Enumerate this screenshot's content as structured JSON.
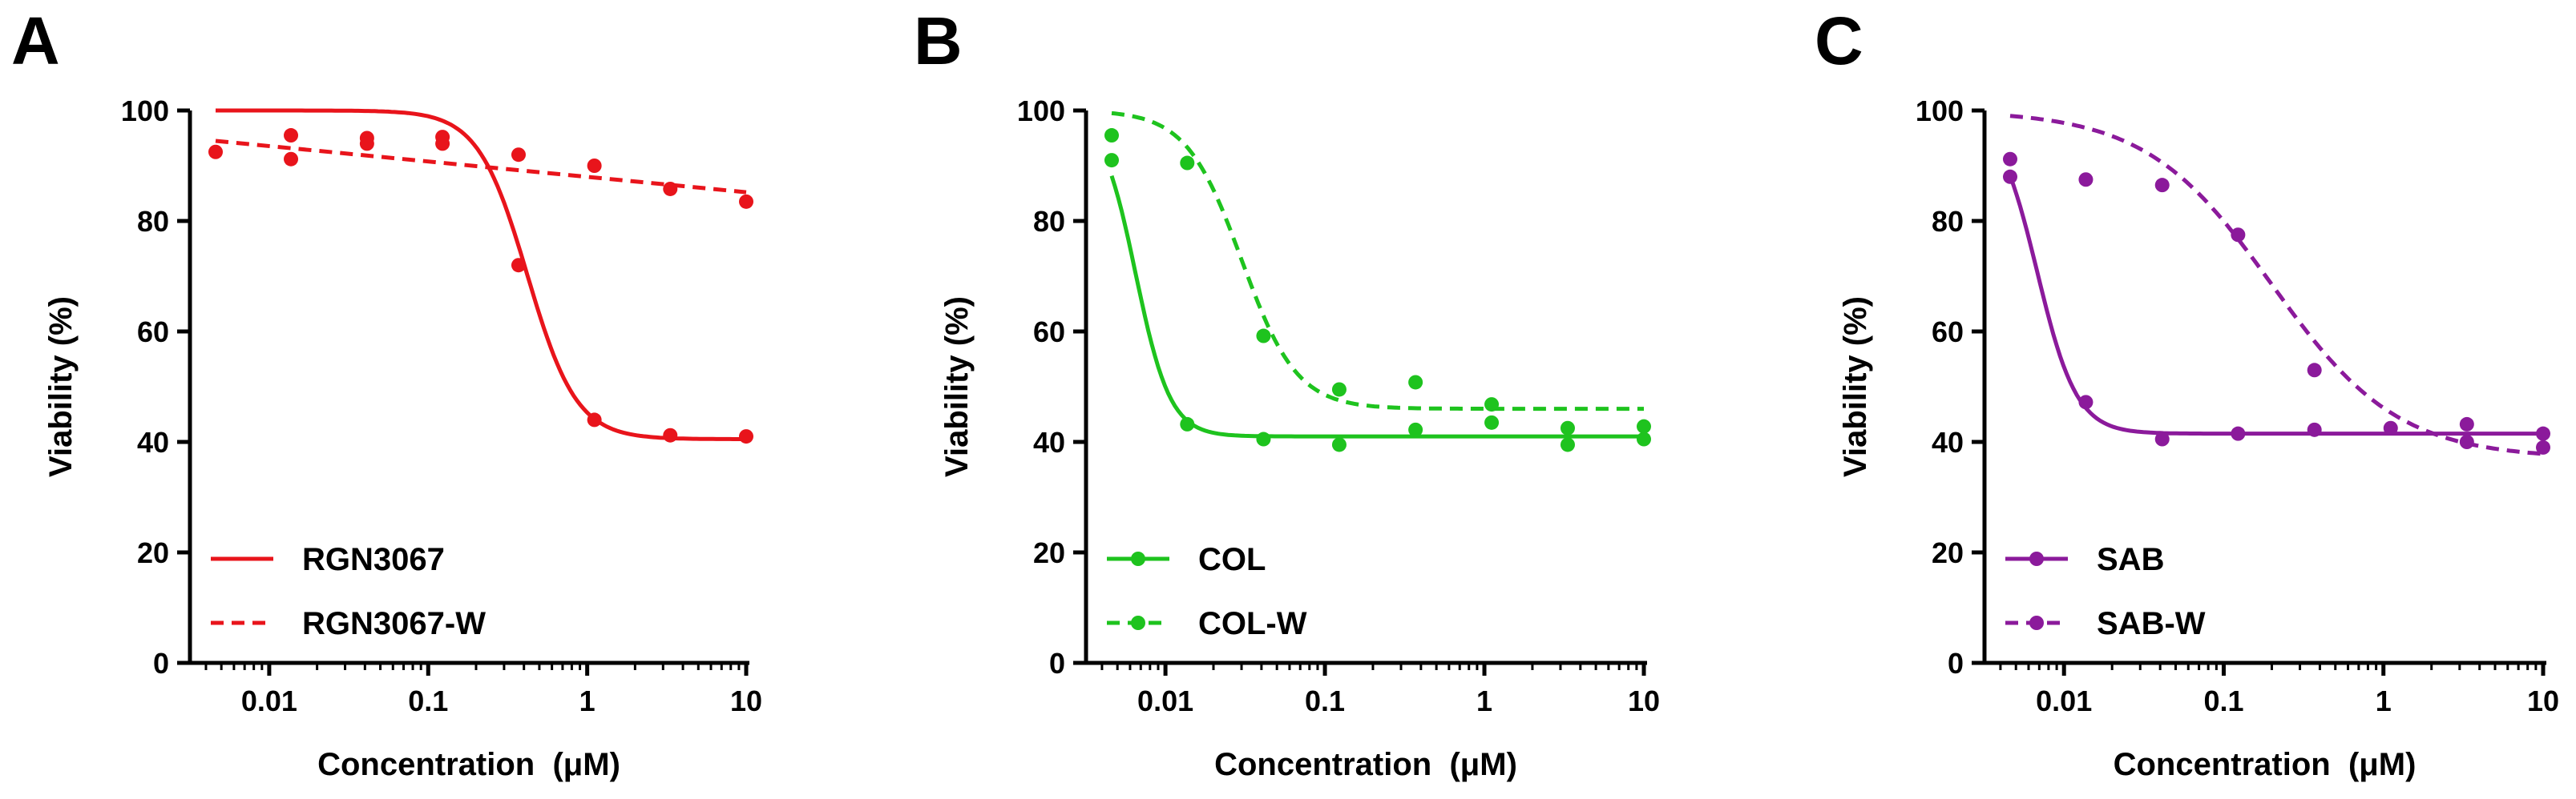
{
  "chart_data": [
    {
      "panel": "A",
      "type": "scatter",
      "xscale": "log",
      "xlabel": "Concentration  (μM)",
      "ylabel": "Viability (%)",
      "xlim": [
        0.0025,
        12
      ],
      "ylim": [
        0,
        100
      ],
      "xticks": [
        0.01,
        0.1,
        1,
        10
      ],
      "xtick_labels": [
        "0.01",
        "0.1",
        "1",
        "10"
      ],
      "yticks": [
        0,
        20,
        40,
        60,
        80,
        100
      ],
      "ytick_labels": [
        "0",
        "20",
        "40",
        "60",
        "80",
        "100"
      ],
      "legend_position": "bottom-left",
      "series": [
        {
          "name": "RGN3067",
          "color": "#e8141b",
          "dashed": false,
          "legend_marker": false,
          "points": [
            [
              0.0137,
              95.5
            ],
            [
              0.0412,
              95.0
            ],
            [
              0.0412,
              94.0
            ],
            [
              0.123,
              95.2
            ],
            [
              0.123,
              94.0
            ],
            [
              0.37,
              72.0
            ],
            [
              1.11,
              44.0
            ],
            [
              3.33,
              41.2
            ],
            [
              10,
              41.0
            ]
          ],
          "curve": {
            "model": "sigmoid",
            "top": 100,
            "bottom": 40.5,
            "ec50": 0.42,
            "hill": 2.8
          }
        },
        {
          "name": "RGN3067-W",
          "color": "#e8141b",
          "dashed": true,
          "legend_marker": false,
          "points": [
            [
              0.0046,
              92.5
            ],
            [
              0.0137,
              91.2
            ],
            [
              0.37,
              92.0
            ],
            [
              1.11,
              90.0
            ],
            [
              3.33,
              85.8
            ],
            [
              10,
              83.5
            ]
          ],
          "curve": {
            "model": "linear-log",
            "points": [
              [
                0.0046,
                94.5
              ],
              [
                10,
                85.2
              ]
            ]
          }
        }
      ]
    },
    {
      "panel": "B",
      "type": "scatter",
      "xscale": "log",
      "xlabel": "Concentration  (μM)",
      "ylabel": "Viability (%)",
      "xlim": [
        0.0025,
        12
      ],
      "ylim": [
        0,
        100
      ],
      "xticks": [
        0.01,
        0.1,
        1,
        10
      ],
      "xtick_labels": [
        "0.01",
        "0.1",
        "1",
        "10"
      ],
      "yticks": [
        0,
        20,
        40,
        60,
        80,
        100
      ],
      "ytick_labels": [
        "0",
        "20",
        "40",
        "60",
        "80",
        "100"
      ],
      "legend_position": "bottom-left",
      "series": [
        {
          "name": "COL",
          "color": "#1ec31e",
          "dashed": false,
          "legend_marker": true,
          "points": [
            [
              0.0046,
              91.0
            ],
            [
              0.0137,
              43.2
            ],
            [
              0.0412,
              40.5
            ],
            [
              0.123,
              39.5
            ],
            [
              0.37,
              42.2
            ],
            [
              1.11,
              43.5
            ],
            [
              3.33,
              39.5
            ],
            [
              10,
              40.5
            ]
          ],
          "curve": {
            "model": "sigmoid",
            "top": 100,
            "bottom": 41,
            "ec50": 0.0065,
            "hill": 4.0
          }
        },
        {
          "name": "COL-W",
          "color": "#1ec31e",
          "dashed": true,
          "legend_marker": true,
          "points": [
            [
              0.0046,
              95.5
            ],
            [
              0.0137,
              90.5
            ],
            [
              0.0412,
              59.2
            ],
            [
              0.123,
              49.5
            ],
            [
              0.37,
              50.8
            ],
            [
              1.11,
              46.8
            ],
            [
              3.33,
              42.5
            ],
            [
              10,
              42.8
            ]
          ],
          "curve": {
            "model": "sigmoid",
            "top": 100,
            "bottom": 46,
            "ec50": 0.03,
            "hill": 2.5
          }
        }
      ]
    },
    {
      "panel": "C",
      "type": "scatter",
      "xscale": "log",
      "xlabel": "Concentration  (μM)",
      "ylabel": "Viability (%)",
      "xlim": [
        0.0025,
        12
      ],
      "ylim": [
        0,
        100
      ],
      "xticks": [
        0.01,
        0.1,
        1,
        10
      ],
      "xtick_labels": [
        "0.01",
        "0.1",
        "1",
        "10"
      ],
      "yticks": [
        0,
        20,
        40,
        60,
        80,
        100
      ],
      "ytick_labels": [
        "0",
        "20",
        "40",
        "60",
        "80",
        "100"
      ],
      "legend_position": "bottom-left",
      "series": [
        {
          "name": "SAB",
          "color": "#8b1a9b",
          "dashed": false,
          "legend_marker": true,
          "points": [
            [
              0.0046,
              88.0
            ],
            [
              0.0137,
              47.2
            ],
            [
              0.0412,
              40.5
            ],
            [
              0.123,
              41.5
            ],
            [
              0.37,
              42.2
            ],
            [
              1.11,
              42.5
            ],
            [
              3.33,
              40.0
            ],
            [
              10,
              41.5
            ]
          ],
          "curve": {
            "model": "sigmoid",
            "top": 100,
            "bottom": 41.5,
            "ec50": 0.0068,
            "hill": 3.5
          }
        },
        {
          "name": "SAB-W",
          "color": "#8b1a9b",
          "dashed": true,
          "legend_marker": true,
          "points": [
            [
              0.0046,
              91.2
            ],
            [
              0.0137,
              87.5
            ],
            [
              0.0412,
              86.5
            ],
            [
              0.123,
              77.5
            ],
            [
              0.37,
              53.0
            ],
            [
              3.33,
              43.2
            ],
            [
              10,
              39.0
            ]
          ],
          "curve": {
            "model": "sigmoid",
            "top": 100,
            "bottom": 37,
            "ec50": 0.2,
            "hill": 1.1
          }
        }
      ]
    }
  ],
  "panel_letters": [
    "A",
    "B",
    "C"
  ]
}
